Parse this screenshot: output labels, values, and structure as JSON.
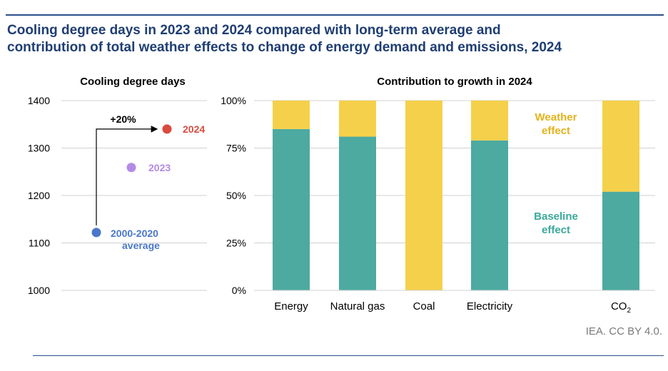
{
  "title_line1": "Cooling degree days in 2023 and 2024 compared with long-term average and",
  "title_line2": "contribution of total weather effects to change of energy demand and emissions, 2024",
  "credit": "IEA. CC BY 4.0.",
  "colors": {
    "title": "#1f3e73",
    "baseline": "#4daaa0",
    "weather": "#f5d04a",
    "weather_label": "#e5b21c",
    "baseline_label": "#3aa89b",
    "avg_point": "#4a77c9",
    "p2023": "#b48ae6",
    "p2024": "#d94b3e",
    "grid": "#d0d0d0"
  },
  "chart_data": [
    {
      "type": "scatter",
      "title": "Cooling degree days",
      "ylim": [
        1000,
        1400
      ],
      "yticks": [
        "1000",
        "1100",
        "1200",
        "1300",
        "1400"
      ],
      "grid": true,
      "points": [
        {
          "label_line1": "2000-2020",
          "label_line2": "average",
          "y": 1122,
          "color": "#4a77c9"
        },
        {
          "label_line1": "2023",
          "label_line2": "",
          "y": 1259,
          "color": "#b48ae6"
        },
        {
          "label_line1": "2024",
          "label_line2": "",
          "y": 1340,
          "color": "#d94b3e"
        }
      ],
      "annotation": "+20%"
    },
    {
      "type": "bar",
      "stacked": true,
      "title": "Contribution to growth in 2024",
      "ylim": [
        0,
        100
      ],
      "yticks": [
        "0%",
        "25%",
        "50%",
        "75%",
        "100%"
      ],
      "grid": true,
      "categories": [
        "Energy",
        "Natural gas",
        "Coal",
        "Electricity",
        "CO₂"
      ],
      "series": [
        {
          "name": "Baseline effect",
          "label_line1": "Baseline",
          "label_line2": "effect",
          "values": [
            85,
            81,
            0,
            79,
            52
          ],
          "color": "#4daaa0"
        },
        {
          "name": "Weather effect",
          "label_line1": "Weather",
          "label_line2": "effect",
          "values": [
            15,
            19,
            100,
            21,
            48
          ],
          "color": "#f5d04a"
        }
      ]
    }
  ]
}
